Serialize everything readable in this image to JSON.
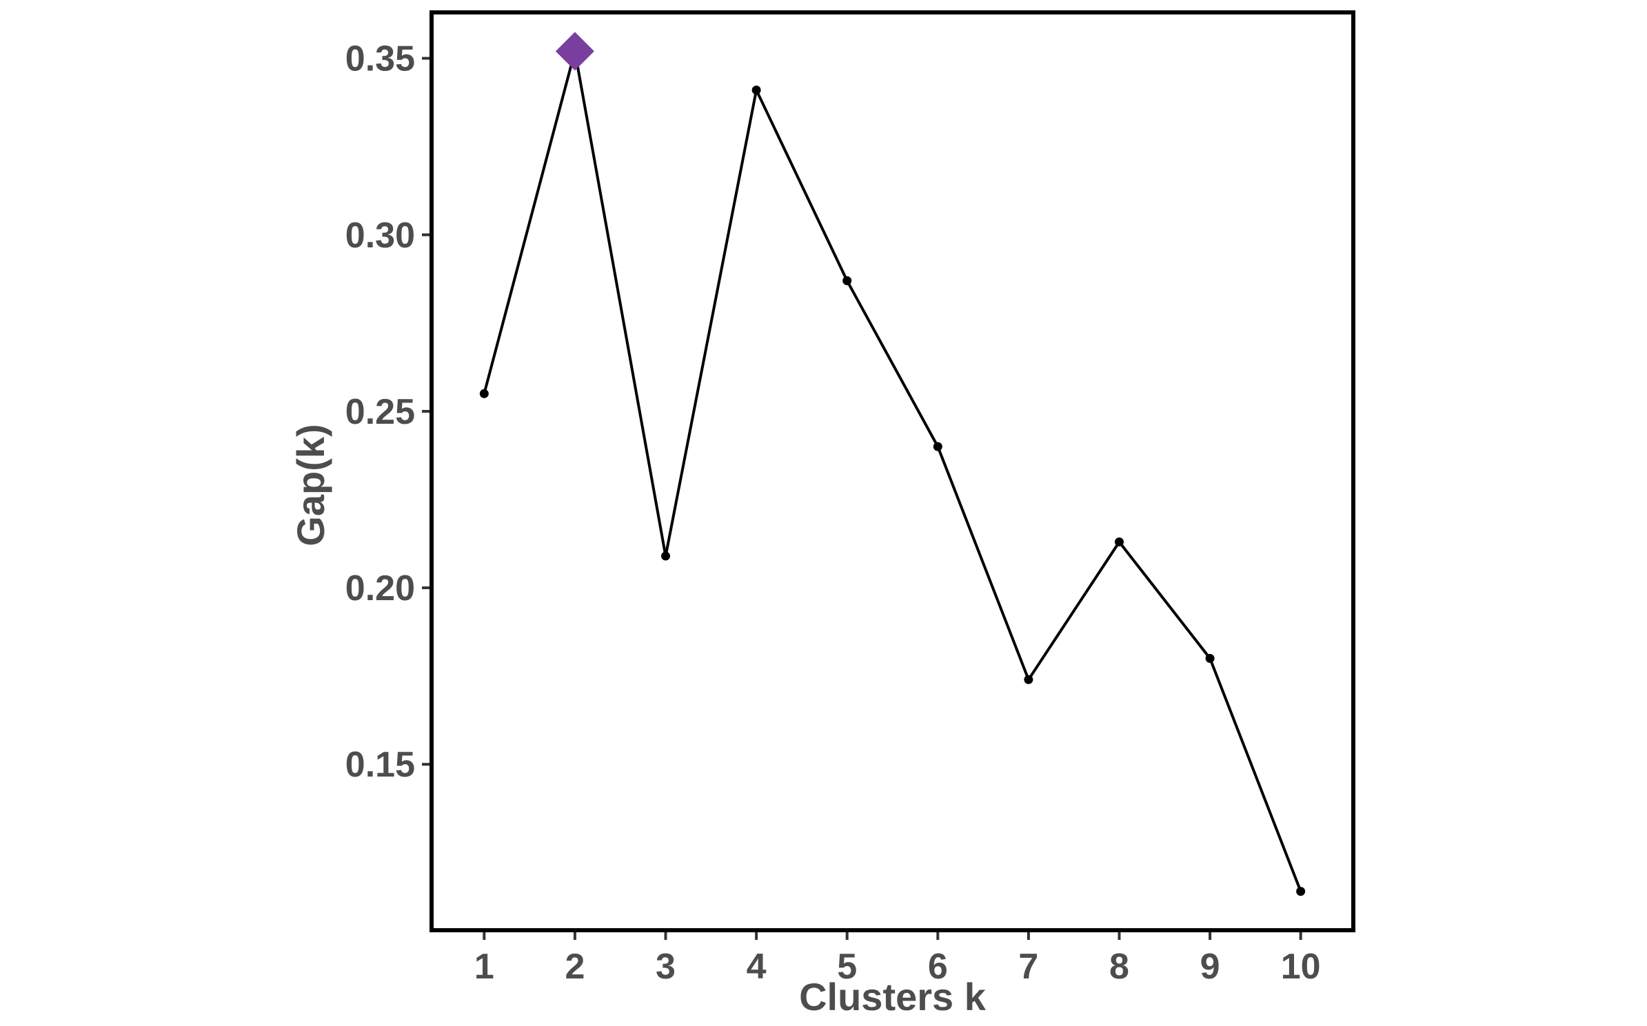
{
  "chart_data": {
    "type": "line",
    "title": "",
    "xlabel": "Clusters k",
    "ylabel": "Gap(k)",
    "x": [
      1,
      2,
      3,
      4,
      5,
      6,
      7,
      8,
      9,
      10
    ],
    "x_tick_labels": [
      "1",
      "2",
      "3",
      "4",
      "5",
      "6",
      "7",
      "8",
      "9",
      "10"
    ],
    "y_ticks": [
      0.15,
      0.2,
      0.25,
      0.3,
      0.35
    ],
    "y_tick_labels": [
      "0.15",
      "0.20",
      "0.25",
      "0.30",
      "0.35"
    ],
    "xlim": [
      0.42,
      10.58
    ],
    "ylim": [
      0.103,
      0.363
    ],
    "grid": false,
    "legend": "none",
    "series": [
      {
        "values": [
          0.255,
          0.352,
          0.209,
          0.341,
          0.287,
          0.24,
          0.174,
          0.213,
          0.18,
          0.114
        ],
        "color": "#000000"
      }
    ],
    "highlight": {
      "x": 2,
      "y": 0.352,
      "marker": "diamond",
      "color": "#7a3ea1"
    }
  }
}
